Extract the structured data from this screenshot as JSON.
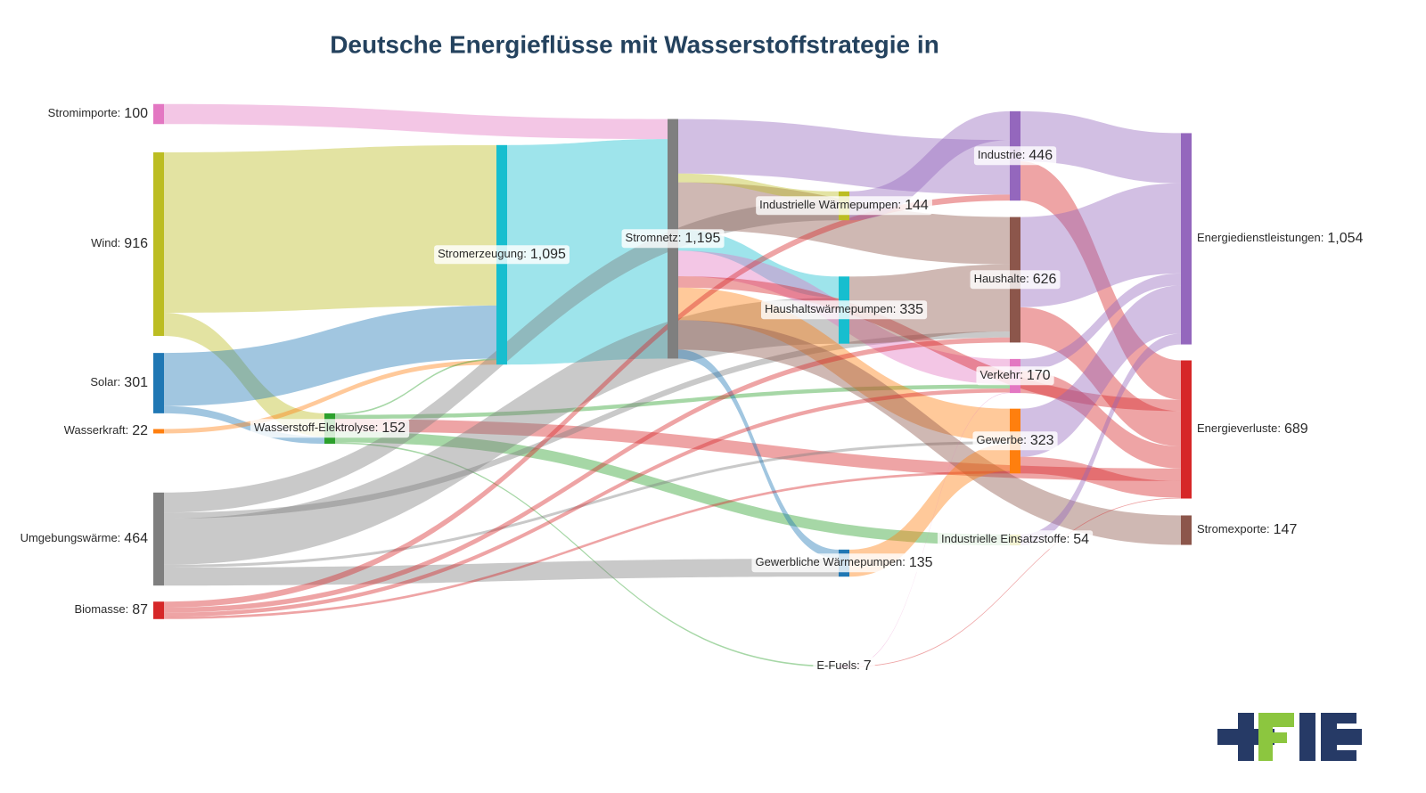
{
  "chart_data": {
    "type": "sankey",
    "title": "Deutsche Energieflüsse mit Wasserstoffstrategie in",
    "nodes": {
      "labels": [
        "Stromimporte:",
        "Wind:",
        "Solar:",
        "Wasserkraft:",
        "Umgebungswärme:",
        "Biomasse:",
        "Wasserstoff-Elektrolyse:",
        "Stromerzeugung:",
        "Stromnetz:",
        "Industrielle Wärmepumpen:",
        "Haushaltswärmepumpen:",
        "Gewerbliche Wärmepumpen:",
        "E-Fuels:",
        "Industrie:",
        "Haushalte:",
        "Verkehr:",
        "Gewerbe:",
        "Industrielle Einsatzstoffe:",
        "Energiedienstleistungen:",
        "Energieverluste:",
        "Stromexporte:"
      ],
      "values": [
        100,
        916,
        301,
        22,
        464,
        87,
        152,
        1095,
        1195,
        144,
        335,
        135,
        7,
        446,
        626,
        170,
        323,
        54,
        1054,
        689,
        147
      ],
      "value_labels": [
        "100",
        "916",
        "301",
        "22",
        "464",
        "87",
        "152",
        "1,095",
        "1,195",
        "144",
        "335",
        "135",
        "7",
        "446",
        "626",
        "170",
        "323",
        "54",
        "1,054",
        "689",
        "147"
      ],
      "colors": [
        "#e377c2",
        "#bcbd22",
        "#1f77b4",
        "#ff7f0e",
        "#7f7f7f",
        "#d62728",
        "#2ca02c",
        "#17becf",
        "#7f7f7f",
        "#bcbd22",
        "#17becf",
        "#1f77b4",
        "#e377c2",
        "#9467bd",
        "#8c564b",
        "#e377c2",
        "#ff7f0e",
        "#bcbd22",
        "#9467bd",
        "#d62728",
        "#8c564b"
      ]
    },
    "links": {
      "source": [
        0,
        1,
        1,
        2,
        2,
        3,
        6,
        6,
        6,
        6,
        6,
        7,
        4,
        4,
        4,
        4,
        4,
        8,
        8,
        8,
        8,
        8,
        8,
        8,
        8,
        8,
        5,
        5,
        5,
        5,
        9,
        10,
        11,
        12,
        12,
        13,
        13,
        14,
        14,
        15,
        15,
        16,
        16,
        17
      ],
      "target": [
        8,
        7,
        6,
        7,
        6,
        7,
        7,
        15,
        17,
        19,
        12,
        8,
        9,
        10,
        11,
        14,
        16,
        13,
        14,
        9,
        10,
        15,
        16,
        11,
        20,
        19,
        13,
        14,
        15,
        16,
        13,
        14,
        16,
        15,
        19,
        18,
        19,
        18,
        19,
        18,
        19,
        18,
        19,
        18
      ],
      "values": [
        100,
        800,
        116,
        265,
        36,
        22,
        8,
        20,
        54,
        63,
        7,
        1095,
        100,
        230,
        90,
        30,
        14,
        272,
        236,
        44,
        105,
        127,
        162,
        45,
        147,
        57,
        30,
        25,
        20,
        12,
        144,
        335,
        135,
        3,
        4,
        250,
        196,
        450,
        176,
        60,
        110,
        240,
        83,
        54
      ],
      "colors": [
        "#e377c2",
        "#bcbd22",
        "#bcbd22",
        "#1f77b4",
        "#1f77b4",
        "#ff7f0e",
        "#2ca02c",
        "#2ca02c",
        "#2ca02c",
        "#d62728",
        "#2ca02c",
        "#17becf",
        "#7f7f7f",
        "#7f7f7f",
        "#7f7f7f",
        "#7f7f7f",
        "#7f7f7f",
        "#9467bd",
        "#8c564b",
        "#bcbd22",
        "#17becf",
        "#e377c2",
        "#ff7f0e",
        "#1f77b4",
        "#8c564b",
        "#d62728",
        "#d62728",
        "#d62728",
        "#d62728",
        "#d62728",
        "#9467bd",
        "#8c564b",
        "#ff7f0e",
        "#e377c2",
        "#d62728",
        "#9467bd",
        "#d62728",
        "#9467bd",
        "#d62728",
        "#9467bd",
        "#d62728",
        "#9467bd",
        "#d62728",
        "#9467bd"
      ]
    }
  }
}
